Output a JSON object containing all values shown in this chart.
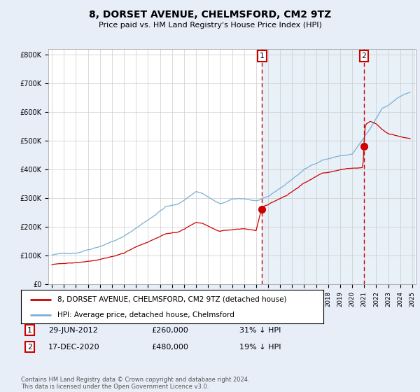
{
  "title": "8, DORSET AVENUE, CHELMSFORD, CM2 9TZ",
  "subtitle": "Price paid vs. HM Land Registry's House Price Index (HPI)",
  "background_color": "#e8eef8",
  "plot_bg_color": "#ffffff",
  "hpi_color": "#7ab0d4",
  "hpi_fill_color": "#ddeeff",
  "price_color": "#cc0000",
  "sale1_year": 2012.5,
  "sale1_price": 260000,
  "sale1_label": "1",
  "sale2_year": 2020.97,
  "sale2_price": 480000,
  "sale2_label": "2",
  "ylim": [
    0,
    820000
  ],
  "yticks": [
    0,
    100000,
    200000,
    300000,
    400000,
    500000,
    600000,
    700000,
    800000
  ],
  "ytick_labels": [
    "£0",
    "£100K",
    "£200K",
    "£300K",
    "£400K",
    "£500K",
    "£600K",
    "£700K",
    "£800K"
  ],
  "legend_entry1": "8, DORSET AVENUE, CHELMSFORD, CM2 9TZ (detached house)",
  "legend_entry2": "HPI: Average price, detached house, Chelmsford",
  "table_row1": [
    "1",
    "29-JUN-2012",
    "£260,000",
    "31% ↓ HPI"
  ],
  "table_row2": [
    "2",
    "17-DEC-2020",
    "£480,000",
    "19% ↓ HPI"
  ],
  "footer": "Contains HM Land Registry data © Crown copyright and database right 2024.\nThis data is licensed under the Open Government Licence v3.0."
}
